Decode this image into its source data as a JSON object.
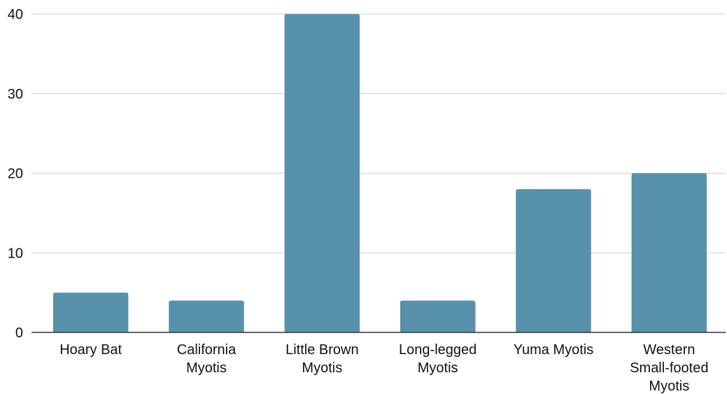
{
  "chart_data": {
    "type": "bar",
    "title": "",
    "xlabel": "",
    "ylabel": "",
    "categories": [
      "Hoary Bat",
      "California Myotis",
      "Little Brown Myotis",
      "Long-legged Myotis",
      "Yuma Myotis",
      "Western Small-footed Myotis"
    ],
    "category_label_lines": [
      [
        "Hoary Bat"
      ],
      [
        "California",
        "Myotis"
      ],
      [
        "Little Brown",
        "Myotis"
      ],
      [
        "Long-legged",
        "Myotis"
      ],
      [
        "Yuma Myotis"
      ],
      [
        "Western",
        "Small-footed",
        "Myotis"
      ]
    ],
    "values": [
      5,
      4,
      40,
      4,
      18,
      20
    ],
    "ylim": [
      0,
      40
    ],
    "yticks": [
      "0",
      "10",
      "20",
      "30",
      "40"
    ],
    "grid": true,
    "legend": "none",
    "bar_color": "#5891ab",
    "grid_color": "#cccccc",
    "axis_color": "#333333"
  }
}
